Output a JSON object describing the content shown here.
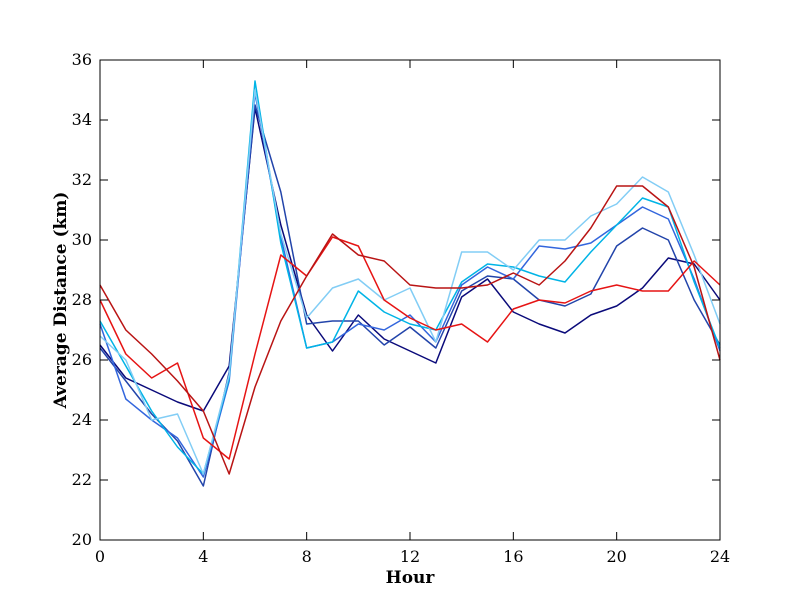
{
  "chart_data": {
    "type": "line",
    "title": "",
    "xlabel": "Hour",
    "ylabel": "Average Distance (km)",
    "xlim": [
      0,
      24
    ],
    "ylim": [
      20,
      36
    ],
    "xticks": [
      "0",
      "4",
      "8",
      "12",
      "16",
      "20",
      "24"
    ],
    "yticks": [
      "20",
      "22",
      "24",
      "26",
      "28",
      "30",
      "32",
      "34",
      "36"
    ],
    "grid": false,
    "legend": "none",
    "x": [
      0,
      1,
      2,
      3,
      4,
      5,
      6,
      7,
      8,
      9,
      10,
      11,
      12,
      13,
      14,
      15,
      16,
      17,
      18,
      19,
      20,
      21,
      22,
      23,
      24
    ],
    "series": [
      {
        "color": "#0a0a7a",
        "values": [
          26.5,
          25.4,
          25.0,
          24.6,
          24.3,
          25.8,
          34.4,
          30.5,
          27.5,
          26.3,
          27.5,
          26.7,
          26.3,
          25.9,
          28.1,
          28.7,
          27.6,
          27.2,
          26.9,
          27.5,
          27.8,
          28.4,
          29.4,
          29.2,
          28.0
        ]
      },
      {
        "color": "#2244aa",
        "values": [
          26.4,
          25.3,
          24.2,
          23.3,
          21.8,
          25.6,
          34.5,
          31.6,
          27.2,
          27.3,
          27.3,
          26.5,
          27.1,
          26.4,
          28.3,
          28.8,
          28.7,
          28.0,
          27.8,
          28.2,
          29.8,
          30.4,
          30.0,
          28.0,
          26.5
        ]
      },
      {
        "color": "#3366dd",
        "values": [
          27.2,
          24.7,
          24.0,
          23.4,
          22.1,
          25.3,
          34.9,
          30.1,
          26.4,
          26.6,
          27.2,
          27.0,
          27.5,
          26.6,
          28.5,
          29.1,
          28.7,
          29.8,
          29.7,
          29.9,
          30.5,
          31.1,
          30.7,
          28.7,
          26.3
        ]
      },
      {
        "color": "#00b4e6",
        "values": [
          27.3,
          25.8,
          24.3,
          23.1,
          22.2,
          25.4,
          35.3,
          29.9,
          26.4,
          26.6,
          28.3,
          27.6,
          27.2,
          27.0,
          28.6,
          29.2,
          29.1,
          28.8,
          28.6,
          29.6,
          30.5,
          31.4,
          31.1,
          28.6,
          26.4
        ]
      },
      {
        "color": "#82cdf5",
        "values": [
          26.8,
          26.0,
          24.0,
          24.2,
          22.2,
          25.5,
          35.0,
          30.2,
          27.4,
          28.4,
          28.7,
          28.0,
          28.4,
          26.6,
          29.6,
          29.6,
          29.0,
          30.0,
          30.0,
          30.8,
          31.2,
          32.1,
          31.6,
          29.5,
          27.2
        ]
      },
      {
        "color": "#e61414",
        "values": [
          28.0,
          26.2,
          25.4,
          25.9,
          23.4,
          22.7,
          26.2,
          29.5,
          28.8,
          30.1,
          29.8,
          28.0,
          27.4,
          27.0,
          27.2,
          26.6,
          27.7,
          28.0,
          27.9,
          28.3,
          28.5,
          28.3,
          28.3,
          29.3,
          28.5
        ]
      },
      {
        "color": "#b91414",
        "values": [
          28.5,
          27.0,
          26.2,
          25.3,
          24.3,
          22.2,
          25.1,
          27.3,
          28.8,
          30.2,
          29.5,
          29.3,
          28.5,
          28.4,
          28.4,
          28.5,
          28.9,
          28.5,
          29.3,
          30.4,
          31.8,
          31.8,
          31.1,
          29.1,
          26.0
        ]
      }
    ]
  }
}
